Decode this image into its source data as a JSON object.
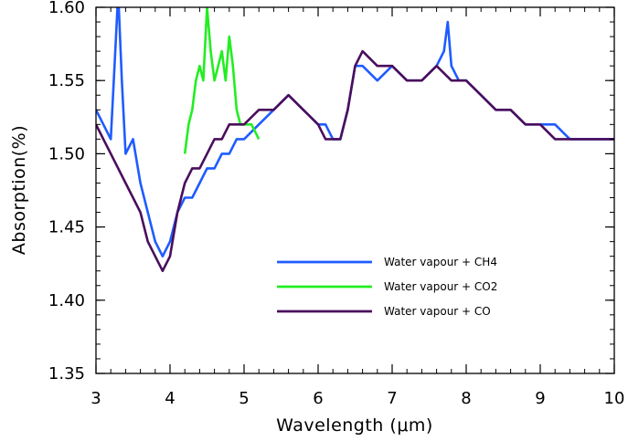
{
  "chart_data": {
    "type": "line",
    "title": "",
    "xlabel_main": "Wavelength (",
    "xlabel_unit": "μm",
    "xlabel_close": ")",
    "ylabel": "Absorption(%)",
    "xlim": [
      3,
      10
    ],
    "ylim": [
      1.35,
      1.6
    ],
    "xticks": [
      3,
      4,
      5,
      6,
      7,
      8,
      9,
      10
    ],
    "xtick_labels": [
      "3",
      "4",
      "5",
      "6",
      "7",
      "8",
      "9",
      "10"
    ],
    "yticks": [
      1.35,
      1.4,
      1.45,
      1.5,
      1.55,
      1.6
    ],
    "ytick_labels": [
      "1.35",
      "1.40",
      "1.45",
      "1.50",
      "1.55",
      "1.60"
    ],
    "grid": false,
    "legend_position": "lower-center",
    "series": [
      {
        "name": "Water vapour + CH4",
        "color": "#1f5cff",
        "x": [
          3.0,
          3.1,
          3.2,
          3.25,
          3.3,
          3.35,
          3.4,
          3.5,
          3.6,
          3.7,
          3.8,
          3.9,
          4.0,
          4.1,
          4.2,
          4.3,
          4.4,
          4.5,
          4.6,
          4.7,
          4.8,
          4.9,
          5.0,
          5.2,
          5.4,
          5.6,
          5.8,
          6.0,
          6.1,
          6.2,
          6.3,
          6.4,
          6.5,
          6.6,
          6.8,
          7.0,
          7.2,
          7.4,
          7.6,
          7.7,
          7.75,
          7.8,
          7.9,
          8.0,
          8.2,
          8.4,
          8.6,
          8.8,
          9.0,
          9.2,
          9.4,
          9.6,
          9.8,
          10.0
        ],
        "y": [
          1.53,
          1.52,
          1.51,
          1.56,
          1.61,
          1.55,
          1.5,
          1.51,
          1.48,
          1.46,
          1.44,
          1.43,
          1.44,
          1.46,
          1.47,
          1.47,
          1.48,
          1.49,
          1.49,
          1.5,
          1.5,
          1.51,
          1.51,
          1.52,
          1.53,
          1.54,
          1.53,
          1.52,
          1.52,
          1.51,
          1.51,
          1.53,
          1.56,
          1.56,
          1.55,
          1.56,
          1.55,
          1.55,
          1.56,
          1.57,
          1.59,
          1.56,
          1.55,
          1.55,
          1.54,
          1.53,
          1.53,
          1.52,
          1.52,
          1.52,
          1.51,
          1.51,
          1.51,
          1.51
        ]
      },
      {
        "name": "Water vapour + CO2",
        "color": "#22ee22",
        "x": [
          4.2,
          4.25,
          4.3,
          4.35,
          4.4,
          4.45,
          4.5,
          4.55,
          4.6,
          4.65,
          4.7,
          4.75,
          4.8,
          4.85,
          4.9,
          4.95,
          5.0,
          5.1,
          5.2
        ],
        "y": [
          1.5,
          1.52,
          1.53,
          1.55,
          1.56,
          1.55,
          1.6,
          1.57,
          1.55,
          1.56,
          1.57,
          1.55,
          1.58,
          1.56,
          1.53,
          1.52,
          1.52,
          1.52,
          1.51
        ]
      },
      {
        "name": "Water vapour + CO",
        "color": "#4a0e5c",
        "x": [
          3.0,
          3.1,
          3.2,
          3.3,
          3.4,
          3.5,
          3.6,
          3.7,
          3.8,
          3.9,
          4.0,
          4.1,
          4.2,
          4.3,
          4.4,
          4.5,
          4.6,
          4.7,
          4.8,
          4.9,
          5.0,
          5.2,
          5.4,
          5.6,
          5.8,
          6.0,
          6.1,
          6.2,
          6.3,
          6.4,
          6.5,
          6.6,
          6.8,
          7.0,
          7.2,
          7.4,
          7.6,
          7.8,
          8.0,
          8.2,
          8.4,
          8.6,
          8.8,
          9.0,
          9.2,
          9.4,
          9.6,
          9.8,
          10.0
        ],
        "y": [
          1.52,
          1.51,
          1.5,
          1.49,
          1.48,
          1.47,
          1.46,
          1.44,
          1.43,
          1.42,
          1.43,
          1.46,
          1.48,
          1.49,
          1.49,
          1.5,
          1.51,
          1.51,
          1.52,
          1.52,
          1.52,
          1.53,
          1.53,
          1.54,
          1.53,
          1.52,
          1.51,
          1.51,
          1.51,
          1.53,
          1.56,
          1.57,
          1.56,
          1.56,
          1.55,
          1.55,
          1.56,
          1.55,
          1.55,
          1.54,
          1.53,
          1.53,
          1.52,
          1.52,
          1.51,
          1.51,
          1.51,
          1.51,
          1.51
        ]
      }
    ]
  }
}
